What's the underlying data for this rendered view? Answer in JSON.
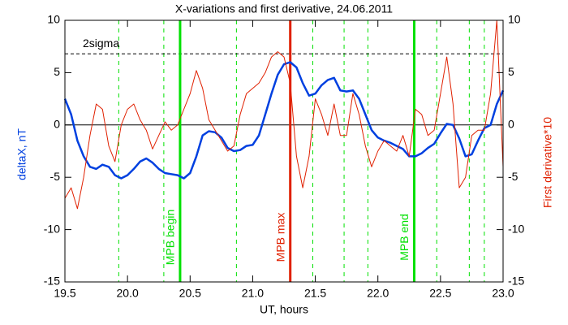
{
  "chart_data": {
    "type": "line",
    "title": "X-variations and first derivative, 24.06.2011",
    "xlabel": "UT, hours",
    "ylabel": "deltaX, nT",
    "y2label": "First derivative*10",
    "xlim": [
      19.5,
      23.0
    ],
    "xticks": [
      19.5,
      {
        "value": 20,
        "label": "20.0"
      },
      20.5,
      {
        "value": 21,
        "label": "21.0"
      },
      21.5,
      {
        "value": 22,
        "label": "22.0"
      },
      22.5,
      {
        "value": 23,
        "label": "23.0"
      }
    ],
    "ylim": [
      -15,
      10
    ],
    "yticks": [
      -15,
      -10,
      -5,
      0,
      5,
      10
    ],
    "y2lim": [
      -15,
      10
    ],
    "y2ticks": [
      -15,
      -10,
      -5,
      0,
      5,
      10
    ],
    "x": [
      19.5,
      19.55,
      19.6,
      19.65,
      19.7,
      19.75,
      19.8,
      19.85,
      19.9,
      19.95,
      20.0,
      20.05,
      20.1,
      20.15,
      20.2,
      20.25,
      20.3,
      20.35,
      20.4,
      20.45,
      20.5,
      20.55,
      20.6,
      20.65,
      20.7,
      20.75,
      20.8,
      20.85,
      20.9,
      20.95,
      21.0,
      21.05,
      21.1,
      21.15,
      21.2,
      21.25,
      21.3,
      21.35,
      21.4,
      21.45,
      21.5,
      21.55,
      21.6,
      21.65,
      21.7,
      21.75,
      21.8,
      21.85,
      21.9,
      21.95,
      22.0,
      22.05,
      22.1,
      22.15,
      22.2,
      22.25,
      22.3,
      22.35,
      22.4,
      22.45,
      22.5,
      22.55,
      22.6,
      22.65,
      22.7,
      22.75,
      22.8,
      22.85,
      22.9,
      22.95,
      23.0
    ],
    "series": [
      {
        "name": "deltaX, nT",
        "color": "#0040e0",
        "values": [
          2.5,
          1,
          -1.5,
          -3,
          -4,
          -4.2,
          -3.8,
          -4,
          -4.8,
          -5.1,
          -4.8,
          -4.2,
          -3.5,
          -3.2,
          -3.6,
          -4.2,
          -4.6,
          -4.7,
          -4.8,
          -5.1,
          -4.6,
          -3,
          -1,
          -0.6,
          -0.7,
          -1.2,
          -2.2,
          -2.5,
          -2.4,
          -2,
          -1.9,
          -1,
          1,
          3,
          4.8,
          5.8,
          6,
          5.5,
          4,
          2.8,
          3,
          3.8,
          4.3,
          4.5,
          3.3,
          3.2,
          3.3,
          2.5,
          1,
          -0.5,
          -1.2,
          -1.5,
          -1.7,
          -2,
          -2.3,
          -3,
          -3,
          -2.7,
          -2.2,
          -1.8,
          -0.8,
          0.1,
          0,
          -1.3,
          -3,
          -2.8,
          -1.5,
          -0.3,
          0,
          2,
          3.3
        ]
      },
      {
        "name": "First derivative*10",
        "color": "#e02000",
        "axis": "y2",
        "values": [
          -7,
          -6,
          -8,
          -5,
          -1,
          2,
          1.5,
          -2,
          -3.5,
          0,
          1.5,
          2,
          0.5,
          -0.5,
          -2.3,
          -1,
          0.3,
          -0.5,
          0,
          1.5,
          3,
          5.2,
          3.5,
          0.5,
          -0.5,
          -1.5,
          -2.5,
          -2,
          1,
          3,
          3.5,
          4,
          5,
          6.5,
          7,
          6.5,
          4,
          -3,
          -6,
          -3,
          2.5,
          1,
          -1,
          2,
          -1,
          -1,
          3,
          1,
          -2,
          -4,
          -2.5,
          -1.5,
          -2,
          -2.5,
          -1,
          -3,
          1.5,
          1,
          -1,
          -0.5,
          3,
          6.5,
          2,
          -6,
          -5,
          -1,
          -0.5,
          -0.5,
          3,
          10,
          -4
        ]
      }
    ],
    "sigma": {
      "label": "2sigma",
      "value": 6.8
    },
    "dashed_lines": {
      "color": "#00e000",
      "x": [
        19.93,
        20.29,
        20.87,
        21.48,
        21.73,
        21.92,
        22.47,
        22.73,
        22.85
      ]
    },
    "markers": [
      {
        "label": "MPB begin",
        "x": 20.42,
        "color": "#00e000"
      },
      {
        "label": "MPB max",
        "x": 21.3,
        "color": "#e02000"
      },
      {
        "label": "MPB end",
        "x": 22.29,
        "color": "#00e000"
      }
    ]
  }
}
